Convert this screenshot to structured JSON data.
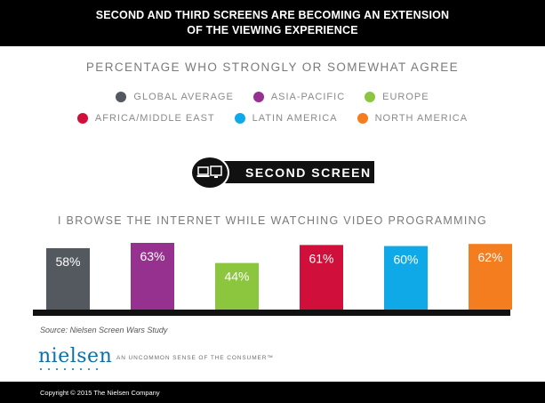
{
  "header": {
    "title_line1": "SECOND AND THIRD SCREENS ARE BECOMING AN EXTENSION",
    "title_line2": "OF THE VIEWING EXPERIENCE"
  },
  "subtitle": "PERCENTAGE WHO STRONGLY OR SOMEWHAT AGREE",
  "legend": [
    {
      "label": "GLOBAL AVERAGE",
      "color": "#54585f"
    },
    {
      "label": "ASIA-PACIFIC",
      "color": "#97318f"
    },
    {
      "label": "EUROPE",
      "color": "#8cc63e"
    },
    {
      "label": "AFRICA/MIDDLE EAST",
      "color": "#d0103a"
    },
    {
      "label": "LATIN AMERICA",
      "color": "#10a9e8"
    },
    {
      "label": "NORTH AMERICA",
      "color": "#f47d20"
    }
  ],
  "badge": {
    "label": "SECOND SCREEN",
    "icon": "screens-icon"
  },
  "question": "I BROWSE THE INTERNET WHILE WATCHING VIDEO PROGRAMMING",
  "chart_data": {
    "type": "bar",
    "categories": [
      "GLOBAL AVERAGE",
      "ASIA-PACIFIC",
      "EUROPE",
      "AFRICA/MIDDLE EAST",
      "LATIN AMERICA",
      "NORTH AMERICA"
    ],
    "values": [
      58,
      63,
      44,
      61,
      60,
      62
    ],
    "data_labels": [
      "58%",
      "63%",
      "44%",
      "61%",
      "60%",
      "62%"
    ],
    "colors": [
      "#54585f",
      "#97318f",
      "#8cc63e",
      "#d0103a",
      "#10a9e8",
      "#f47d20"
    ],
    "title": "",
    "xlabel": "",
    "ylabel": "",
    "grid": false,
    "legend_position": "top"
  },
  "source": "Source: Nielsen Screen Wars Study",
  "brand": {
    "name": "nielsen",
    "tagline": "AN UNCOMMON SENSE OF THE CONSUMER™",
    "color": "#0b6fa8"
  },
  "footer": "Copyright © 2015 The Nielsen Company"
}
